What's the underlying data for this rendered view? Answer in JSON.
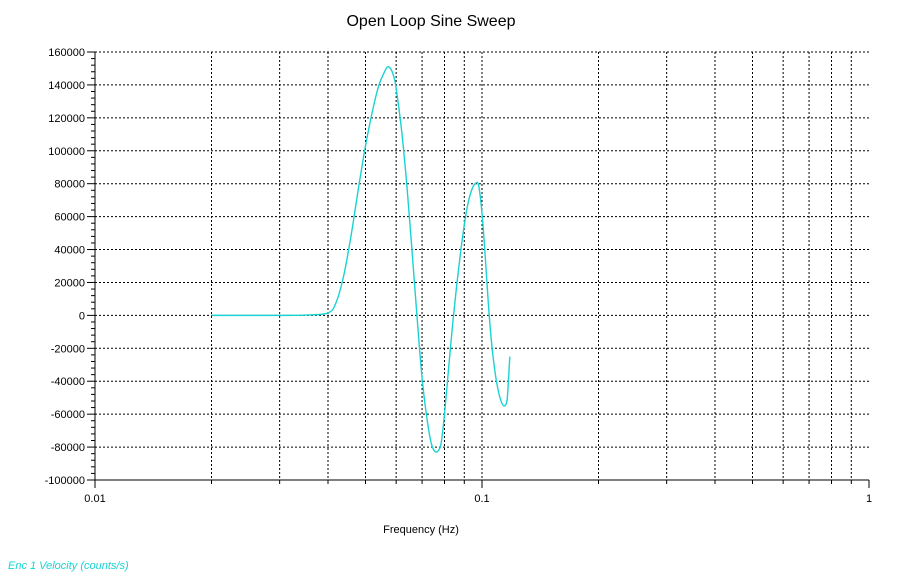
{
  "chart_data": {
    "type": "line",
    "title": "Open Loop Sine Sweep",
    "xlabel": "Frequency (Hz)",
    "ylabel": "",
    "x_scale": "log",
    "xlim": [
      0.01,
      1
    ],
    "ylim": [
      -100000,
      160000
    ],
    "grid": true,
    "x_tick_labels": [
      "0.01",
      "0.1",
      "1"
    ],
    "y_tick_labels": [
      "160000",
      "140000",
      "120000",
      "100000",
      "80000",
      "60000",
      "40000",
      "20000",
      "0",
      "-20000",
      "-40000",
      "-60000",
      "-80000",
      "-100000"
    ],
    "legend": {
      "label": "Enc 1 Velocity (counts/s)",
      "placement": "bottom-left",
      "color": "#19d3d3"
    },
    "series": [
      {
        "name": "Enc 1 Velocity (counts/s)",
        "color": "#19d3d3",
        "x": [
          0.02,
          0.025,
          0.03,
          0.035,
          0.04,
          0.042,
          0.044,
          0.046,
          0.048,
          0.05,
          0.052,
          0.054,
          0.056,
          0.057,
          0.058,
          0.059,
          0.06,
          0.062,
          0.064,
          0.066,
          0.068,
          0.07,
          0.072,
          0.074,
          0.076,
          0.078,
          0.079,
          0.08,
          0.082,
          0.084,
          0.086,
          0.088,
          0.09,
          0.092,
          0.094,
          0.096,
          0.098,
          0.1,
          0.102,
          0.104,
          0.106,
          0.108,
          0.11,
          0.112,
          0.114,
          0.116,
          0.117,
          0.118
        ],
        "y": [
          0,
          0,
          0,
          200,
          1500,
          8000,
          25000,
          50000,
          78000,
          103000,
          123000,
          139000,
          148000,
          151000,
          150000,
          146000,
          138000,
          112000,
          78000,
          38000,
          -2000,
          -38000,
          -62000,
          -78000,
          -83000,
          -80000,
          -72000,
          -60000,
          -32000,
          -5000,
          18000,
          38000,
          55000,
          68000,
          76000,
          80000,
          79000,
          62000,
          35000,
          5000,
          -18000,
          -34000,
          -45000,
          -52000,
          -55000,
          -52000,
          -40000,
          -25000
        ]
      }
    ]
  }
}
